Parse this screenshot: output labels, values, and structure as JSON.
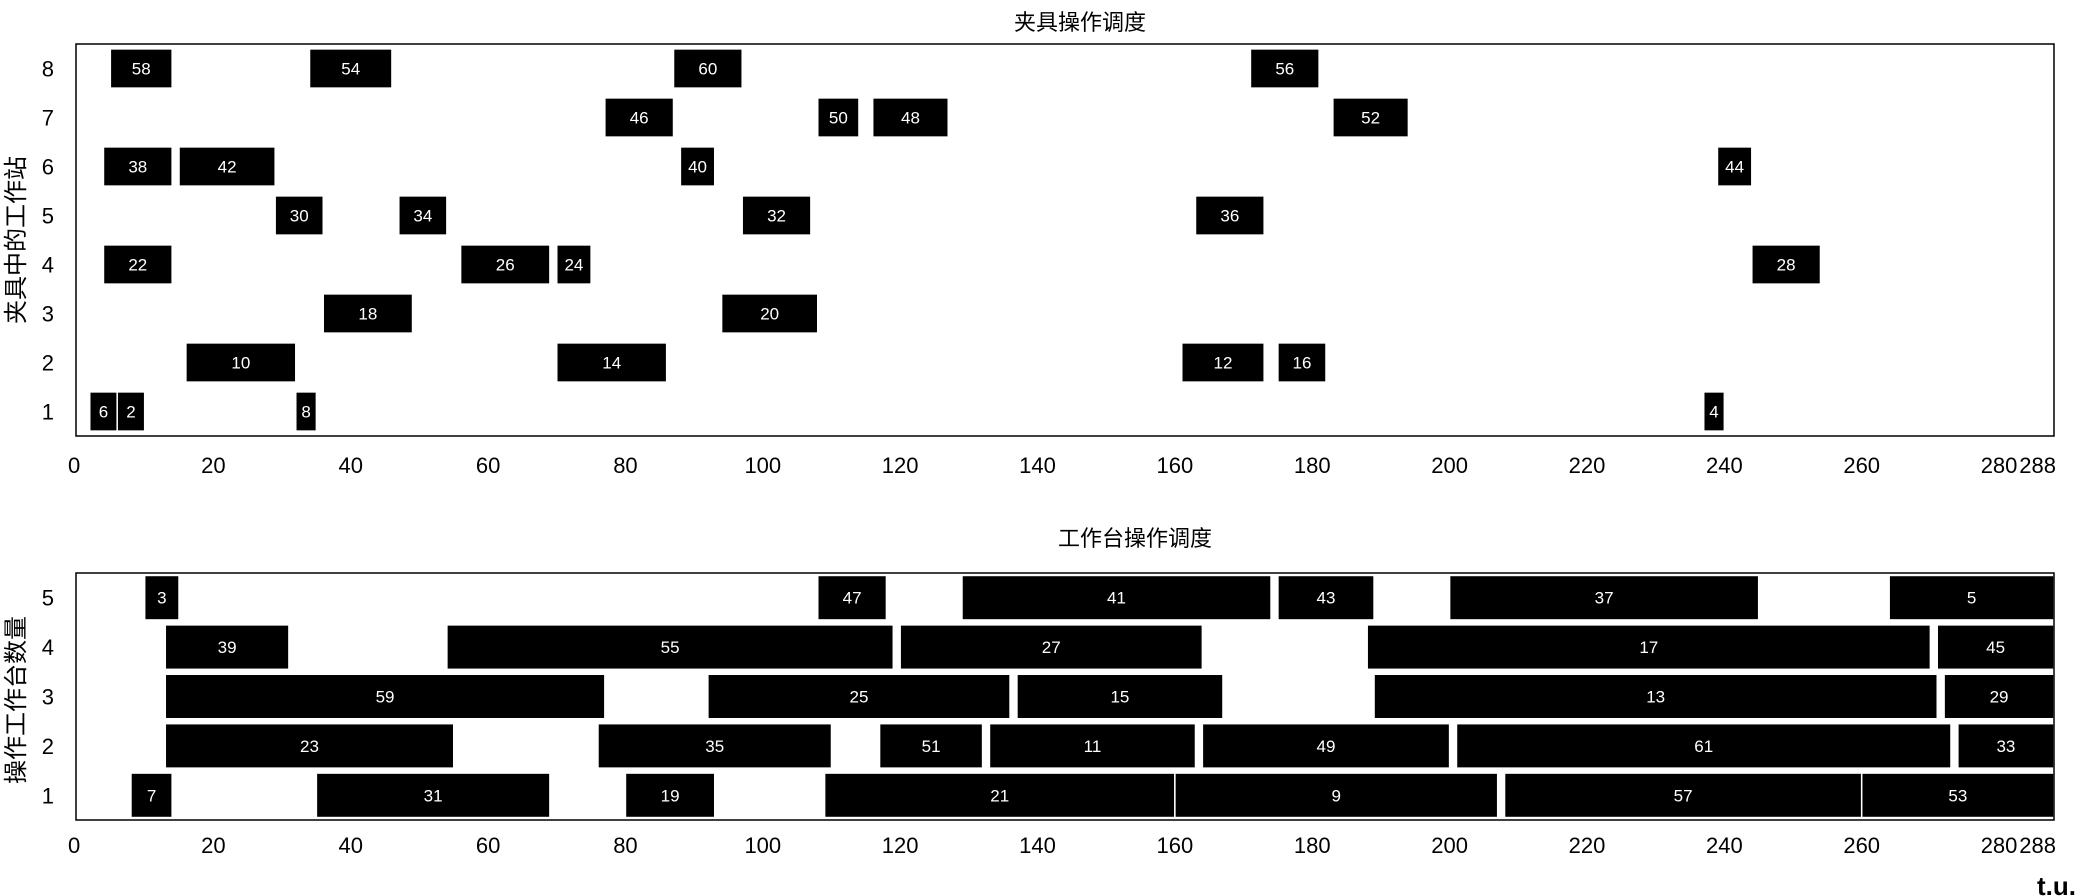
{
  "chart_data": [
    {
      "type": "gantt",
      "title": "夹具操作调度",
      "ylabel": "夹具中的工作站",
      "xlim": [
        0,
        288
      ],
      "ylim": [
        0.5,
        8.5
      ],
      "xticks": [
        0,
        20,
        40,
        60,
        80,
        100,
        120,
        140,
        160,
        180,
        200,
        220,
        240,
        260,
        280,
        288
      ],
      "yticks": [
        1,
        2,
        3,
        4,
        5,
        6,
        7,
        8
      ],
      "tasks": [
        {
          "label": "58",
          "row": 8,
          "start": 5,
          "end": 14
        },
        {
          "label": "54",
          "row": 8,
          "start": 34,
          "end": 46
        },
        {
          "label": "60",
          "row": 8,
          "start": 87,
          "end": 97
        },
        {
          "label": "56",
          "row": 8,
          "start": 171,
          "end": 181
        },
        {
          "label": "46",
          "row": 7,
          "start": 77,
          "end": 87
        },
        {
          "label": "50",
          "row": 7,
          "start": 108,
          "end": 114
        },
        {
          "label": "48",
          "row": 7,
          "start": 116,
          "end": 127
        },
        {
          "label": "52",
          "row": 7,
          "start": 183,
          "end": 194
        },
        {
          "label": "38",
          "row": 6,
          "start": 4,
          "end": 14
        },
        {
          "label": "42",
          "row": 6,
          "start": 15,
          "end": 29
        },
        {
          "label": "40",
          "row": 6,
          "start": 88,
          "end": 93
        },
        {
          "label": "44",
          "row": 6,
          "start": 239,
          "end": 244
        },
        {
          "label": "30",
          "row": 5,
          "start": 29,
          "end": 36
        },
        {
          "label": "34",
          "row": 5,
          "start": 47,
          "end": 54
        },
        {
          "label": "32",
          "row": 5,
          "start": 97,
          "end": 107
        },
        {
          "label": "36",
          "row": 5,
          "start": 163,
          "end": 173
        },
        {
          "label": "22",
          "row": 4,
          "start": 4,
          "end": 14
        },
        {
          "label": "26",
          "row": 4,
          "start": 56,
          "end": 69
        },
        {
          "label": "24",
          "row": 4,
          "start": 70,
          "end": 75
        },
        {
          "label": "28",
          "row": 4,
          "start": 244,
          "end": 254
        },
        {
          "label": "18",
          "row": 3,
          "start": 36,
          "end": 49
        },
        {
          "label": "20",
          "row": 3,
          "start": 94,
          "end": 108
        },
        {
          "label": "10",
          "row": 2,
          "start": 16,
          "end": 32
        },
        {
          "label": "14",
          "row": 2,
          "start": 70,
          "end": 86
        },
        {
          "label": "12",
          "row": 2,
          "start": 161,
          "end": 173
        },
        {
          "label": "16",
          "row": 2,
          "start": 175,
          "end": 182
        },
        {
          "label": "6",
          "row": 1,
          "start": 2,
          "end": 6
        },
        {
          "label": "2",
          "row": 1,
          "start": 6,
          "end": 10
        },
        {
          "label": "8",
          "row": 1,
          "start": 32,
          "end": 35
        },
        {
          "label": "4",
          "row": 1,
          "start": 237,
          "end": 240
        }
      ]
    },
    {
      "type": "gantt",
      "title": "工作台操作调度",
      "ylabel": "操作工作台数量",
      "xlim": [
        0,
        288
      ],
      "ylim": [
        0.5,
        5.5
      ],
      "xticks": [
        0,
        20,
        40,
        60,
        80,
        100,
        120,
        140,
        160,
        180,
        200,
        220,
        240,
        260,
        280,
        288
      ],
      "yticks": [
        1,
        2,
        3,
        4,
        5
      ],
      "unit_label": "t.u.",
      "tasks": [
        {
          "label": "3",
          "row": 5,
          "start": 10,
          "end": 15
        },
        {
          "label": "47",
          "row": 5,
          "start": 108,
          "end": 118
        },
        {
          "label": "41",
          "row": 5,
          "start": 129,
          "end": 174
        },
        {
          "label": "43",
          "row": 5,
          "start": 175,
          "end": 189
        },
        {
          "label": "37",
          "row": 5,
          "start": 200,
          "end": 245
        },
        {
          "label": "5",
          "row": 5,
          "start": 264,
          "end": 322
        },
        {
          "label": "39",
          "row": 4,
          "start": 13,
          "end": 31
        },
        {
          "label": "55",
          "row": 4,
          "start": 54,
          "end": 119
        },
        {
          "label": "27",
          "row": 4,
          "start": 120,
          "end": 164
        },
        {
          "label": "17",
          "row": 4,
          "start": 188,
          "end": 270
        },
        {
          "label": "45",
          "row": 4,
          "start": 271,
          "end": 313
        },
        {
          "label": "59",
          "row": 3,
          "start": 13,
          "end": 77
        },
        {
          "label": "25",
          "row": 3,
          "start": 92,
          "end": 136
        },
        {
          "label": "15",
          "row": 3,
          "start": 137,
          "end": 167
        },
        {
          "label": "13",
          "row": 3,
          "start": 189,
          "end": 271
        },
        {
          "label": "29",
          "row": 3,
          "start": 272,
          "end": 315
        },
        {
          "label": "23",
          "row": 2,
          "start": 13,
          "end": 55
        },
        {
          "label": "35",
          "row": 2,
          "start": 76,
          "end": 110
        },
        {
          "label": "51",
          "row": 2,
          "start": 117,
          "end": 132
        },
        {
          "label": "11",
          "row": 2,
          "start": 133,
          "end": 163
        },
        {
          "label": "49",
          "row": 2,
          "start": 164,
          "end": 200
        },
        {
          "label": "61",
          "row": 2,
          "start": 201,
          "end": 273
        },
        {
          "label": "33",
          "row": 2,
          "start": 274,
          "end": 322
        },
        {
          "label": "7",
          "row": 1,
          "start": 8,
          "end": 14
        },
        {
          "label": "31",
          "row": 1,
          "start": 35,
          "end": 69
        },
        {
          "label": "19",
          "row": 1,
          "start": 80,
          "end": 93
        },
        {
          "label": "21",
          "row": 1,
          "start": 109,
          "end": 160
        },
        {
          "label": "9",
          "row": 1,
          "start": 160,
          "end": 207
        },
        {
          "label": "57",
          "row": 1,
          "start": 208,
          "end": 260
        },
        {
          "label": "53",
          "row": 1,
          "start": 260,
          "end": 322
        }
      ]
    }
  ]
}
